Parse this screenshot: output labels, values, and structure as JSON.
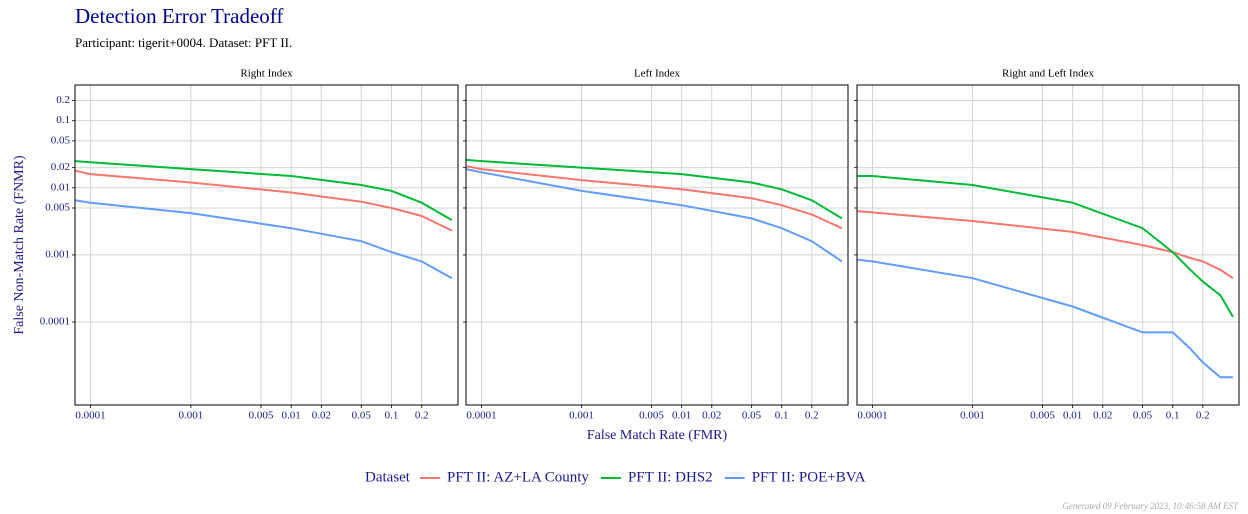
{
  "title": "Detection Error Tradeoff",
  "subtitle": "Participant: tigerit+0004. Dataset: PFT II.",
  "x_label": "False Match Rate (FMR)",
  "y_label": "False Non-Match Rate (FNMR)",
  "legend": {
    "title": "Dataset",
    "series": [
      {
        "name": "PFT II: AZ+LA County",
        "color": "#f8766d"
      },
      {
        "name": "PFT II: DHS2",
        "color": "#00ba38"
      },
      {
        "name": "PFT II: POE+BVA",
        "color": "#619cff"
      }
    ]
  },
  "footer": "Generated 09 February 2023, 10:46:58 AM EST",
  "chart_data": [
    {
      "type": "line",
      "title": "Right Index",
      "log_x": true,
      "log_y": true,
      "grid": true,
      "xlim": [
        7e-05,
        0.46
      ],
      "ylim": [
        5.8e-06,
        0.34
      ],
      "xticks": [
        0.0001,
        0.001,
        0.005,
        0.01,
        0.02,
        0.05,
        0.1,
        0.2
      ],
      "yticks": [
        0.0001,
        0.001,
        0.005,
        0.01,
        0.02,
        0.05,
        0.1,
        0.2
      ],
      "x": [
        7e-05,
        0.0001,
        0.001,
        0.01,
        0.05,
        0.1,
        0.2,
        0.4
      ],
      "series": [
        {
          "values": [
            0.018,
            0.016,
            0.012,
            0.0085,
            0.0062,
            0.005,
            0.0038,
            0.0023
          ]
        },
        {
          "values": [
            0.025,
            0.024,
            0.019,
            0.015,
            0.011,
            0.009,
            0.006,
            0.0033
          ]
        },
        {
          "values": [
            0.0065,
            0.006,
            0.0042,
            0.0025,
            0.0016,
            0.0011,
            0.0008,
            0.00045
          ]
        }
      ]
    },
    {
      "type": "line",
      "title": "Left Index",
      "log_x": true,
      "log_y": true,
      "grid": true,
      "xlim": [
        7e-05,
        0.46
      ],
      "ylim": [
        5.8e-06,
        0.34
      ],
      "xticks": [
        0.0001,
        0.001,
        0.005,
        0.01,
        0.02,
        0.05,
        0.1,
        0.2
      ],
      "x": [
        7e-05,
        0.0001,
        0.001,
        0.01,
        0.05,
        0.1,
        0.2,
        0.4
      ],
      "series": [
        {
          "values": [
            0.021,
            0.019,
            0.013,
            0.0095,
            0.007,
            0.0055,
            0.004,
            0.0025
          ]
        },
        {
          "values": [
            0.026,
            0.025,
            0.02,
            0.016,
            0.012,
            0.0095,
            0.0065,
            0.0035
          ]
        },
        {
          "values": [
            0.019,
            0.017,
            0.009,
            0.0055,
            0.0035,
            0.0025,
            0.0016,
            0.0008
          ]
        }
      ]
    },
    {
      "type": "line",
      "title": "Right and Left Index",
      "log_x": true,
      "log_y": true,
      "grid": true,
      "xlim": [
        7e-05,
        0.46
      ],
      "ylim": [
        5.8e-06,
        0.34
      ],
      "xticks": [
        0.0001,
        0.001,
        0.005,
        0.01,
        0.02,
        0.05,
        0.1,
        0.2
      ],
      "x": [
        7e-05,
        0.0001,
        0.001,
        0.01,
        0.05,
        0.1,
        0.15,
        0.2,
        0.3,
        0.4
      ],
      "series": [
        {
          "values": [
            0.0045,
            0.0043,
            0.0032,
            0.0022,
            0.0014,
            0.0011,
            0.0009,
            0.0008,
            0.0006,
            0.00045
          ]
        },
        {
          "values": [
            0.015,
            0.015,
            0.011,
            0.006,
            0.0025,
            0.0011,
            0.0006,
            0.0004,
            0.00025,
            0.00012
          ]
        },
        {
          "values": [
            0.00085,
            0.0008,
            0.00045,
            0.00017,
            7e-05,
            7e-05,
            4e-05,
            2.5e-05,
            1.5e-05,
            1.5e-05
          ]
        }
      ]
    }
  ]
}
